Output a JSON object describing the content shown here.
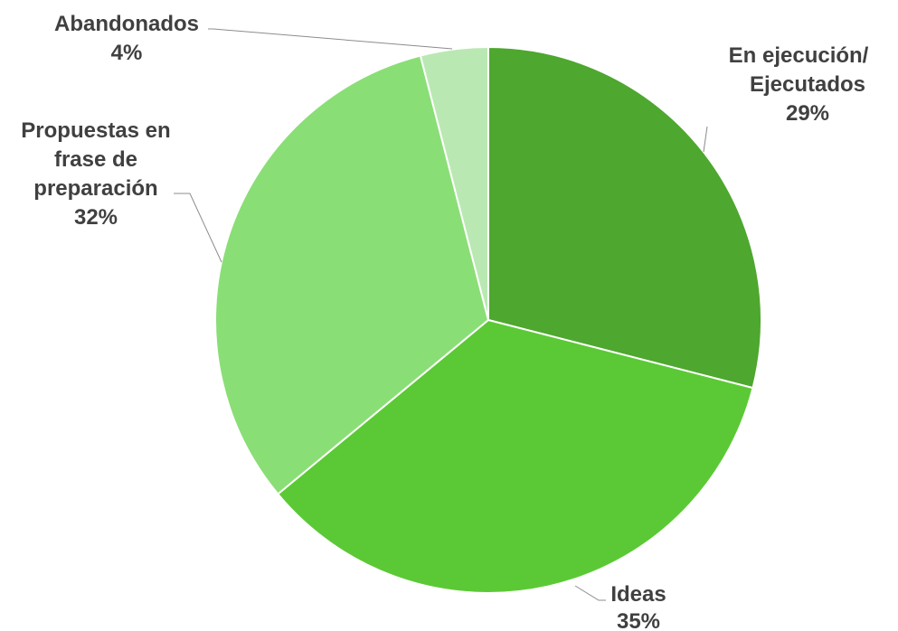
{
  "chart_data": {
    "type": "pie",
    "slices": [
      {
        "label_lines": [
          "En ejecución/",
          "Ejecutados"
        ],
        "percent_label": "29%",
        "value": 29,
        "color": "#4ea72e"
      },
      {
        "label_lines": [
          "Ideas"
        ],
        "percent_label": "35%",
        "value": 35,
        "color": "#5bc935"
      },
      {
        "label_lines": [
          "Propuestas en",
          "frase de",
          "preparación"
        ],
        "percent_label": "32%",
        "value": 32,
        "color": "#8ade76"
      },
      {
        "label_lines": [
          "Abandonados"
        ],
        "percent_label": "4%",
        "value": 4,
        "color": "#bae8b2"
      }
    ],
    "start": "12 o'clock, clockwise",
    "legend": "none (data labels outside with leader lines)"
  }
}
